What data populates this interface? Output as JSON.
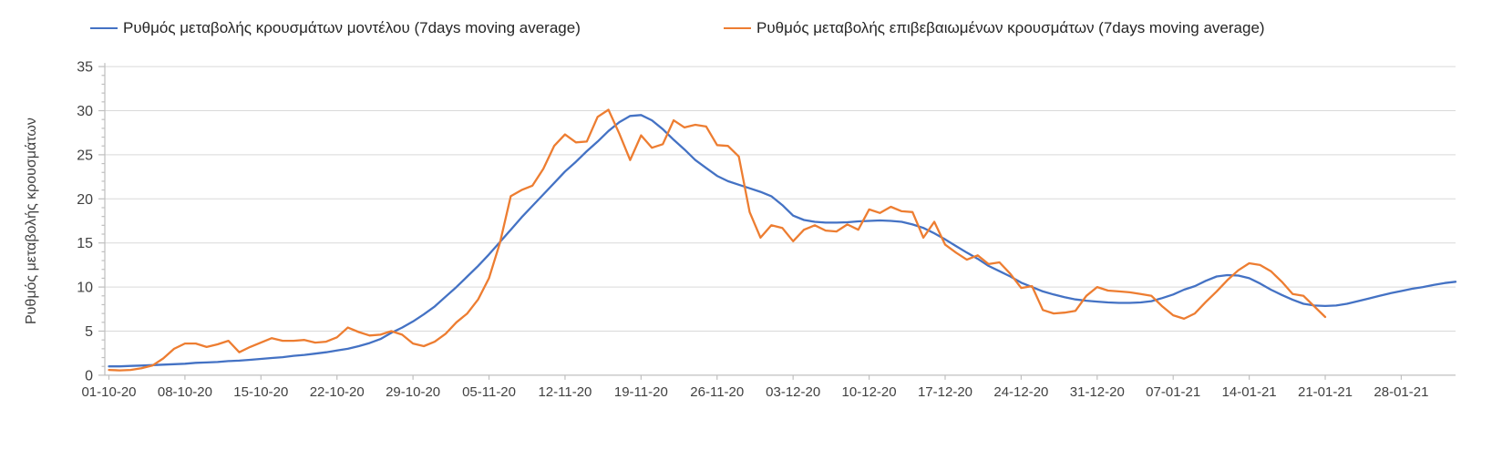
{
  "chart_data": {
    "type": "line",
    "title": "",
    "ylabel": "Ρυθμός μεταβολής κρουσμάτων",
    "xlabel": "",
    "ylim": [
      0,
      35
    ],
    "ytick_step": 5,
    "y_minor_step": 1,
    "grid": "horizontal",
    "legend_position": "top",
    "x_start_date": "01-10-20",
    "x_tick_interval_days": 7,
    "x_total_days": 124,
    "x_tick_labels": [
      "01-10-20",
      "08-10-20",
      "15-10-20",
      "22-10-20",
      "29-10-20",
      "05-11-20",
      "12-11-20",
      "19-11-20",
      "26-11-20",
      "03-12-20",
      "10-12-20",
      "17-12-20",
      "24-12-20",
      "31-12-20",
      "07-01-21",
      "14-01-21",
      "21-01-21",
      "28-01-21"
    ],
    "axis_color": "#bfbfbf",
    "gridline_color": "#d9d9d9",
    "tick_text_color": "#404040",
    "series": [
      {
        "name": "Ρυθμός μεταβολής κρουσμάτων μοντέλου (7days moving average)",
        "color": "#4472c4",
        "values": [
          1.0,
          1.0,
          1.05,
          1.1,
          1.15,
          1.2,
          1.25,
          1.3,
          1.4,
          1.45,
          1.5,
          1.6,
          1.65,
          1.75,
          1.85,
          1.95,
          2.05,
          2.2,
          2.3,
          2.45,
          2.6,
          2.8,
          3.0,
          3.3,
          3.65,
          4.1,
          4.8,
          5.4,
          6.1,
          6.9,
          7.8,
          8.9,
          10.0,
          11.2,
          12.4,
          13.7,
          15.1,
          16.5,
          17.9,
          19.2,
          20.5,
          21.8,
          23.1,
          24.2,
          25.4,
          26.5,
          27.7,
          28.7,
          29.4,
          29.5,
          28.9,
          27.9,
          26.7,
          25.6,
          24.4,
          23.5,
          22.6,
          22.0,
          21.6,
          21.2,
          20.8,
          20.3,
          19.3,
          18.1,
          17.6,
          17.4,
          17.3,
          17.3,
          17.35,
          17.45,
          17.5,
          17.55,
          17.5,
          17.4,
          17.1,
          16.7,
          16.1,
          15.4,
          14.65,
          13.9,
          13.2,
          12.4,
          11.8,
          11.2,
          10.5,
          10.0,
          9.5,
          9.15,
          8.85,
          8.6,
          8.45,
          8.35,
          8.25,
          8.2,
          8.2,
          8.25,
          8.4,
          8.75,
          9.15,
          9.7,
          10.1,
          10.7,
          11.2,
          11.35,
          11.3,
          11.0,
          10.4,
          9.7,
          9.1,
          8.55,
          8.1,
          7.9,
          7.85,
          7.9,
          8.1,
          8.4,
          8.7,
          9.0,
          9.3,
          9.55,
          9.8,
          10.0,
          10.25,
          10.45,
          10.6
        ]
      },
      {
        "name": "Ρυθμός μεταβολής επιβεβαιωμένων κρουσμάτων (7days moving average)",
        "color": "#ed7d31",
        "values": [
          0.6,
          0.55,
          0.6,
          0.8,
          1.1,
          1.9,
          3.0,
          3.6,
          3.6,
          3.2,
          3.5,
          3.9,
          2.6,
          3.2,
          3.7,
          4.2,
          3.9,
          3.9,
          4.0,
          3.7,
          3.8,
          4.3,
          5.4,
          4.9,
          4.5,
          4.6,
          5.0,
          4.6,
          3.6,
          3.3,
          3.8,
          4.7,
          6.0,
          7.0,
          8.6,
          11.0,
          15.0,
          20.3,
          21.0,
          21.5,
          23.4,
          26.0,
          27.3,
          26.4,
          26.5,
          29.3,
          30.1,
          27.4,
          24.4,
          27.2,
          25.8,
          26.2,
          28.9,
          28.1,
          28.4,
          28.2,
          26.1,
          26.0,
          24.8,
          18.5,
          15.6,
          17.0,
          16.7,
          15.2,
          16.5,
          17.0,
          16.4,
          16.3,
          17.1,
          16.5,
          18.8,
          18.4,
          19.1,
          18.6,
          18.5,
          15.6,
          17.4,
          14.8,
          13.9,
          13.1,
          13.6,
          12.6,
          12.8,
          11.5,
          9.9,
          10.1,
          7.4,
          7.0,
          7.1,
          7.3,
          9.0,
          10.0,
          9.6,
          9.5,
          9.4,
          9.2,
          9.0,
          7.8,
          6.8,
          6.4,
          7.0,
          8.3,
          9.5,
          10.8,
          11.9,
          12.7,
          12.5,
          11.8,
          10.6,
          9.2,
          9.0,
          7.8,
          6.6
        ]
      }
    ]
  }
}
